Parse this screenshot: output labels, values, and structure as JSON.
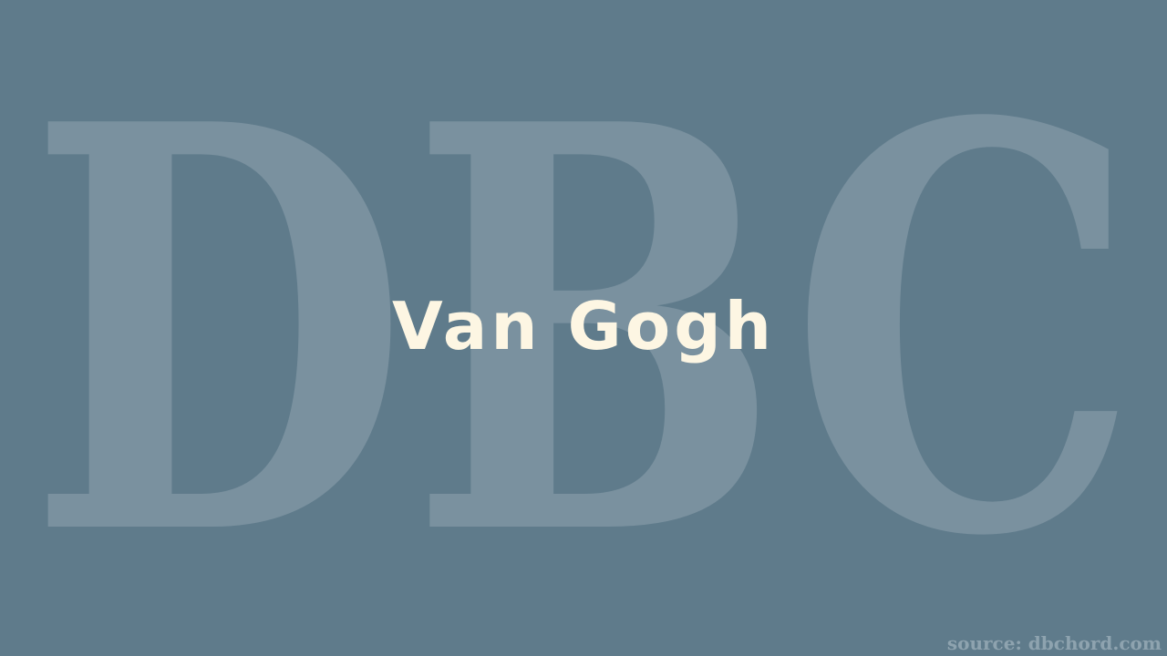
{
  "watermark": {
    "letters": "DBC",
    "color": "#7a919f"
  },
  "title": "Van  Gogh",
  "source": "source: dbchord.com",
  "colors": {
    "background": "#5f7b8b",
    "title": "#fdf6e3",
    "source": "#8ea3af"
  }
}
